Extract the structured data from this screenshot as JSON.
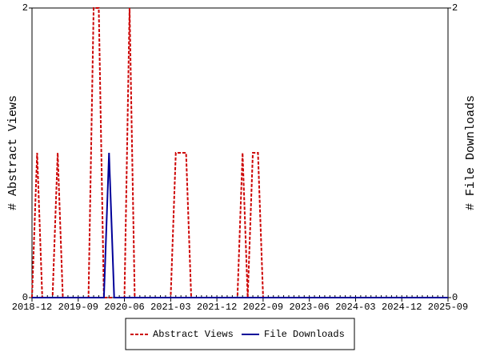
{
  "chart_data": {
    "type": "line",
    "x": [
      "2018-12",
      "2019-01",
      "2019-02",
      "2019-03",
      "2019-04",
      "2019-05",
      "2019-06",
      "2019-07",
      "2019-08",
      "2019-09",
      "2019-10",
      "2019-11",
      "2019-12",
      "2020-01",
      "2020-02",
      "2020-03",
      "2020-04",
      "2020-05",
      "2020-06",
      "2020-07",
      "2020-08",
      "2020-09",
      "2020-10",
      "2020-11",
      "2020-12",
      "2021-01",
      "2021-02",
      "2021-03",
      "2021-04",
      "2021-05",
      "2021-06",
      "2021-07",
      "2021-08",
      "2021-09",
      "2021-10",
      "2021-11",
      "2021-12",
      "2022-01",
      "2022-02",
      "2022-03",
      "2022-04",
      "2022-05",
      "2022-06",
      "2022-07",
      "2022-08",
      "2022-09",
      "2022-10",
      "2022-11",
      "2022-12",
      "2023-01",
      "2023-02",
      "2023-03",
      "2023-04",
      "2023-05",
      "2023-06",
      "2023-07",
      "2023-08",
      "2023-09",
      "2023-10",
      "2023-11",
      "2023-12",
      "2024-01",
      "2024-02",
      "2024-03",
      "2024-04",
      "2024-05",
      "2024-06",
      "2024-07",
      "2024-08",
      "2024-09",
      "2024-10",
      "2024-11",
      "2024-12",
      "2025-01",
      "2025-02",
      "2025-03",
      "2025-04",
      "2025-05",
      "2025-06",
      "2025-07",
      "2025-08",
      "2025-09"
    ],
    "xticks": [
      "2018-12",
      "2019-09",
      "2020-06",
      "2021-03",
      "2021-12",
      "2022-09",
      "2023-06",
      "2024-03",
      "2024-12",
      "2025-09"
    ],
    "ylabel": "# Abstract Views",
    "y2label": "# File Downloads",
    "ylim": [
      0,
      2
    ],
    "yticks": [
      0,
      2
    ],
    "y2lim": [
      0,
      2
    ],
    "y2ticks": [
      0,
      2
    ],
    "legend": "bottom",
    "series": [
      {
        "name": "Abstract Views",
        "color": "#cc0000",
        "dash": true,
        "values": [
          0,
          1,
          0,
          0,
          0,
          1,
          0,
          0,
          0,
          0,
          0,
          0,
          2,
          2,
          0,
          0,
          0,
          0,
          0,
          2,
          0,
          0,
          0,
          0,
          0,
          0,
          0,
          0,
          1,
          1,
          1,
          0,
          0,
          0,
          0,
          0,
          0,
          0,
          0,
          0,
          0,
          1,
          0,
          1,
          1,
          0,
          0,
          0,
          0,
          0,
          0,
          0,
          0,
          0,
          0,
          0,
          0,
          0,
          0,
          0,
          0,
          0,
          0,
          0,
          0,
          0,
          0,
          0,
          0,
          0,
          0,
          0,
          0,
          0,
          0,
          0,
          0,
          0,
          0,
          0,
          0,
          0
        ]
      },
      {
        "name": "File Downloads",
        "color": "#000099",
        "dash": false,
        "axis": "y2",
        "values": [
          0,
          0,
          0,
          0,
          0,
          0,
          0,
          0,
          0,
          0,
          0,
          0,
          0,
          0,
          0,
          1,
          0,
          0,
          0,
          0,
          0,
          0,
          0,
          0,
          0,
          0,
          0,
          0,
          0,
          0,
          0,
          0,
          0,
          0,
          0,
          0,
          0,
          0,
          0,
          0,
          0,
          0,
          0,
          0,
          0,
          0,
          0,
          0,
          0,
          0,
          0,
          0,
          0,
          0,
          0,
          0,
          0,
          0,
          0,
          0,
          0,
          0,
          0,
          0,
          0,
          0,
          0,
          0,
          0,
          0,
          0,
          0,
          0,
          0,
          0,
          0,
          0,
          0,
          0,
          0,
          0,
          0
        ]
      }
    ]
  }
}
